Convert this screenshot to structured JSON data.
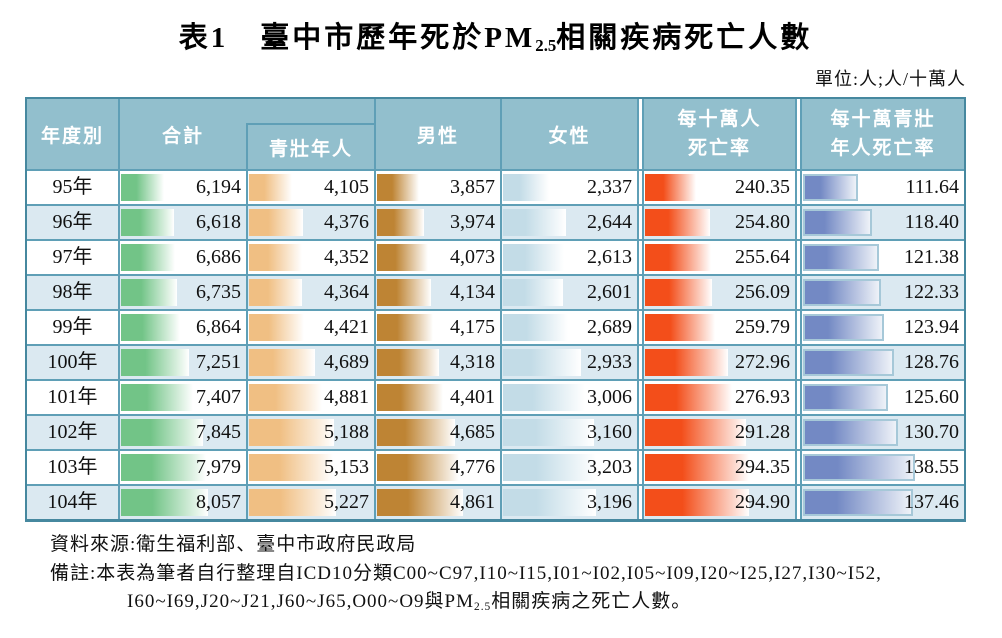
{
  "title": {
    "prefix": "表1　臺中市歷年死於PM",
    "sub": "2.5",
    "suffix": "相關疾病死亡人數"
  },
  "unit_note": "單位:人;人/十萬人",
  "colors": {
    "header_bg": "#92BFCD",
    "header_text": "#FFFFFF",
    "grid_line": "#5F9FB6",
    "outer_line": "#46889F",
    "alt_row_bg": "#DBE9F1",
    "bar_total": "#72C487",
    "bar_youth": "#F0BF83",
    "bar_male": "#BE8434",
    "bar_female": "#C3DCE7",
    "bar_rate_all": "#F34E1A",
    "bar_rate_youth": "#7389C4",
    "bar_rate_youth_border": "#A6C8D8"
  },
  "table": {
    "headers": {
      "year": "年度別",
      "total": "合計",
      "youth": "青壯年人",
      "male": "男性",
      "female": "女性",
      "rate_all_line1": "每十萬人",
      "rate_all_line2": "死亡率",
      "rate_youth_line1": "每十萬青壯",
      "rate_youth_line2": "年人死亡率"
    }
  },
  "footer": {
    "source": "資料來源:衛生福利部、臺中市政府民政局",
    "note_line1": "備註:本表為筆者自行整理自ICD10分類C00~C97,I10~I15,I01~I02,I05~I09,I20~I25,I27,I30~I52,",
    "note_line2_prefix": "I60~I69,J20~J21,J60~J65,O00~O9與PM",
    "note_line2_sub": "2.5",
    "note_line2_suffix": "相關疾病之死亡人數。"
  },
  "chart_data": {
    "type": "table",
    "title": "表1 臺中市歷年死於PM2.5相關疾病死亡人數",
    "unit": "單位:人;人/十萬人",
    "columns": [
      "年度別",
      "合計",
      "合計-青壯年人",
      "男性",
      "女性",
      "每十萬人死亡率",
      "每十萬青壯年人死亡率"
    ],
    "years": [
      "95年",
      "96年",
      "97年",
      "98年",
      "99年",
      "100年",
      "101年",
      "102年",
      "103年",
      "104年"
    ],
    "series": [
      {
        "key": "total",
        "name": "合計",
        "bar_color": "#72C487",
        "values": [
          6194,
          6618,
          6686,
          6735,
          6864,
          7251,
          7407,
          7845,
          7979,
          8057
        ]
      },
      {
        "key": "youth",
        "name": "青壯年人",
        "bar_color": "#F0BF83",
        "values": [
          4105,
          4376,
          4352,
          4364,
          4421,
          4689,
          4881,
          5188,
          5153,
          5227
        ]
      },
      {
        "key": "male",
        "name": "男性",
        "bar_color": "#BE8434",
        "values": [
          3857,
          3974,
          4073,
          4134,
          4175,
          4318,
          4401,
          4685,
          4776,
          4861
        ]
      },
      {
        "key": "female",
        "name": "女性",
        "bar_color": "#C3DCE7",
        "values": [
          2337,
          2644,
          2613,
          2601,
          2689,
          2933,
          3006,
          3160,
          3203,
          3196
        ]
      },
      {
        "key": "rate_all",
        "name": "每十萬人死亡率",
        "decimals": 2,
        "bar_color": "#F34E1A",
        "values": [
          240.35,
          254.8,
          255.64,
          256.09,
          259.79,
          272.96,
          276.93,
          291.28,
          294.35,
          294.9
        ]
      },
      {
        "key": "rate_youth",
        "name": "每十萬青壯年人死亡率",
        "decimals": 2,
        "bar_color": "#7389C4",
        "bar_border": "#A6C8D8",
        "values": [
          111.64,
          118.4,
          121.38,
          122.33,
          123.94,
          128.76,
          125.6,
          130.7,
          138.55,
          137.46
        ]
      }
    ],
    "layout": {
      "bar_min_pct": 34,
      "bar_max_pct": 69,
      "alternating_rows": true
    }
  }
}
